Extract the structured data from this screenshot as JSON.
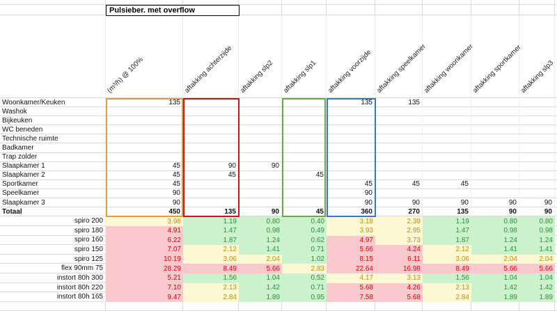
{
  "title": "Pulsieber. met overflow",
  "columns": [
    "(m³/h) @ 100%",
    "aftakking achterzijde",
    "aftakking slp2",
    "aftakking slp1",
    "aftakking voorzijde",
    "aftakking speelkamer",
    "aftakking woonkamer",
    "aftakking sportkamer",
    "aftakking slp3"
  ],
  "rooms": [
    {
      "label": "Woonkamer/Keuken",
      "cells": [
        "135",
        "",
        "",
        "",
        "135",
        "135",
        "",
        "",
        ""
      ]
    },
    {
      "label": "Washok",
      "cells": [
        "",
        "",
        "",
        "",
        "",
        "",
        "",
        "",
        ""
      ]
    },
    {
      "label": "Bijkeuken",
      "cells": [
        "",
        "",
        "",
        "",
        "",
        "",
        "",
        "",
        ""
      ]
    },
    {
      "label": "WC beneden",
      "cells": [
        "",
        "",
        "",
        "",
        "",
        "",
        "",
        "",
        ""
      ]
    },
    {
      "label": "Technische ruimte",
      "cells": [
        "",
        "",
        "",
        "",
        "",
        "",
        "",
        "",
        ""
      ]
    },
    {
      "label": "Badkamer",
      "cells": [
        "",
        "",
        "",
        "",
        "",
        "",
        "",
        "",
        ""
      ]
    },
    {
      "label": "Trap zolder",
      "cells": [
        "",
        "",
        "",
        "",
        "",
        "",
        "",
        "",
        ""
      ]
    },
    {
      "label": "Slaapkamer 1",
      "cells": [
        "45",
        "90",
        "90",
        "",
        "",
        "",
        "",
        "",
        ""
      ]
    },
    {
      "label": "Slaapkamer 2",
      "cells": [
        "45",
        "45",
        "",
        "45",
        "",
        "",
        "",
        "",
        ""
      ]
    },
    {
      "label": "Sportkamer",
      "cells": [
        "45",
        "",
        "",
        "",
        "45",
        "45",
        "45",
        "",
        ""
      ]
    },
    {
      "label": "Speelkamer",
      "cells": [
        "90",
        "",
        "",
        "",
        "90",
        "",
        "",
        "",
        ""
      ]
    },
    {
      "label": "Slaapkamer 3",
      "cells": [
        "90",
        "",
        "",
        "",
        "90",
        "90",
        "90",
        "90",
        "90"
      ]
    }
  ],
  "totals": {
    "label": "Totaal",
    "cells": [
      "450",
      "135",
      "90",
      "45",
      "360",
      "270",
      "135",
      "90",
      "90"
    ]
  },
  "ducts": [
    {
      "label": "spiro 200",
      "cells": [
        {
          "v": "3.98",
          "c": "y"
        },
        {
          "v": "1.19",
          "c": "g"
        },
        {
          "v": "0.80",
          "c": "g"
        },
        {
          "v": "0.40",
          "c": "g"
        },
        {
          "v": "3.18",
          "c": "y"
        },
        {
          "v": "2.39",
          "c": "y"
        },
        {
          "v": "1.19",
          "c": "g"
        },
        {
          "v": "0.80",
          "c": "g"
        },
        {
          "v": "0.80",
          "c": "g"
        }
      ]
    },
    {
      "label": "spiro 180",
      "cells": [
        {
          "v": "4.91",
          "c": "p"
        },
        {
          "v": "1.47",
          "c": "g"
        },
        {
          "v": "0.98",
          "c": "g"
        },
        {
          "v": "0.49",
          "c": "g"
        },
        {
          "v": "3.93",
          "c": "y"
        },
        {
          "v": "2.95",
          "c": "y"
        },
        {
          "v": "1.47",
          "c": "g"
        },
        {
          "v": "0.98",
          "c": "g"
        },
        {
          "v": "0.98",
          "c": "g"
        }
      ]
    },
    {
      "label": "spiro 160",
      "cells": [
        {
          "v": "6.22",
          "c": "p"
        },
        {
          "v": "1.87",
          "c": "g"
        },
        {
          "v": "1.24",
          "c": "g"
        },
        {
          "v": "0.62",
          "c": "g"
        },
        {
          "v": "4.97",
          "c": "p"
        },
        {
          "v": "3.73",
          "c": "y"
        },
        {
          "v": "1.87",
          "c": "g"
        },
        {
          "v": "1.24",
          "c": "g"
        },
        {
          "v": "1.24",
          "c": "g"
        }
      ]
    },
    {
      "label": "spiro 150",
      "cells": [
        {
          "v": "7.07",
          "c": "p"
        },
        {
          "v": "2.12",
          "c": "y"
        },
        {
          "v": "1.41",
          "c": "g"
        },
        {
          "v": "0.71",
          "c": "g"
        },
        {
          "v": "5.66",
          "c": "p"
        },
        {
          "v": "4.24",
          "c": "p"
        },
        {
          "v": "2.12",
          "c": "y"
        },
        {
          "v": "1.41",
          "c": "g"
        },
        {
          "v": "1.41",
          "c": "g"
        }
      ]
    },
    {
      "label": "spiro 125",
      "cells": [
        {
          "v": "10.19",
          "c": "p"
        },
        {
          "v": "3.06",
          "c": "y"
        },
        {
          "v": "2.04",
          "c": "y"
        },
        {
          "v": "1.02",
          "c": "g"
        },
        {
          "v": "8.15",
          "c": "p"
        },
        {
          "v": "6.11",
          "c": "p"
        },
        {
          "v": "3.06",
          "c": "y"
        },
        {
          "v": "2.04",
          "c": "y"
        },
        {
          "v": "2.04",
          "c": "y"
        }
      ]
    },
    {
      "label": "flex 90mm 75",
      "cells": [
        {
          "v": "28.29",
          "c": "p"
        },
        {
          "v": "8.49",
          "c": "p"
        },
        {
          "v": "5.66",
          "c": "p"
        },
        {
          "v": "2.83",
          "c": "y"
        },
        {
          "v": "22.64",
          "c": "p"
        },
        {
          "v": "16.98",
          "c": "p"
        },
        {
          "v": "8.49",
          "c": "p"
        },
        {
          "v": "5.66",
          "c": "p"
        },
        {
          "v": "5.66",
          "c": "p"
        }
      ]
    },
    {
      "label": "instort 80h 300",
      "cells": [
        {
          "v": "5.21",
          "c": "p"
        },
        {
          "v": "1.56",
          "c": "g"
        },
        {
          "v": "1.04",
          "c": "g"
        },
        {
          "v": "0.52",
          "c": "g"
        },
        {
          "v": "4.17",
          "c": "y"
        },
        {
          "v": "3.13",
          "c": "y"
        },
        {
          "v": "1.56",
          "c": "g"
        },
        {
          "v": "1.04",
          "c": "g"
        },
        {
          "v": "1.04",
          "c": "g"
        }
      ]
    },
    {
      "label": "instort 80h 220",
      "cells": [
        {
          "v": "7.10",
          "c": "p"
        },
        {
          "v": "2.13",
          "c": "y"
        },
        {
          "v": "1.42",
          "c": "g"
        },
        {
          "v": "0.71",
          "c": "g"
        },
        {
          "v": "5.68",
          "c": "p"
        },
        {
          "v": "4.26",
          "c": "p"
        },
        {
          "v": "2.13",
          "c": "y"
        },
        {
          "v": "1.42",
          "c": "g"
        },
        {
          "v": "1.42",
          "c": "g"
        }
      ]
    },
    {
      "label": "instort 80h 165",
      "cells": [
        {
          "v": "9.47",
          "c": "p"
        },
        {
          "v": "2.84",
          "c": "y"
        },
        {
          "v": "1.89",
          "c": "g"
        },
        {
          "v": "0.95",
          "c": "g"
        },
        {
          "v": "7.58",
          "c": "p"
        },
        {
          "v": "5.68",
          "c": "p"
        },
        {
          "v": "2.84",
          "c": "y"
        },
        {
          "v": "1.89",
          "c": "g"
        },
        {
          "v": "1.89",
          "c": "g"
        }
      ]
    }
  ],
  "selection_boxes": {
    "orange": "#e09f3e",
    "red": "#cc1414",
    "green": "#6aa84f",
    "blue": "#3a76d0"
  },
  "cell_colors": {
    "green_bg": "#ccf2cd",
    "green_text": "#2a9235",
    "yellow_bg": "#fcf8d4",
    "yellow_text": "#bf9000",
    "pink_bg": "#fac9ce",
    "pink_text": "#dd0000"
  }
}
